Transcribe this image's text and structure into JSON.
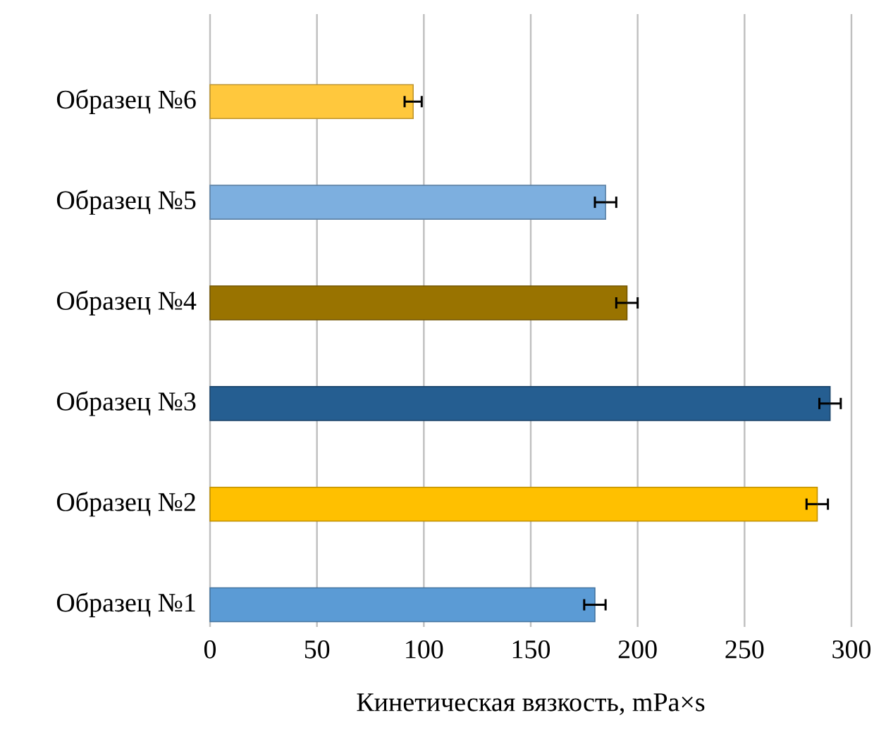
{
  "chart_data": {
    "type": "bar",
    "orientation": "horizontal",
    "xlabel": "Кинетическая вязкость, mPa×s",
    "categories": [
      "Образец №6",
      "Образец №5",
      "Образец №4",
      "Образец №3",
      "Образец №2",
      "Образец №1"
    ],
    "values": [
      95,
      185,
      195,
      290,
      284,
      180
    ],
    "errors": [
      4,
      5,
      5,
      5,
      5,
      5
    ],
    "colors": [
      "#ffc83d",
      "#7dafdf",
      "#997300",
      "#255e91",
      "#ffc000",
      "#5b9bd5"
    ],
    "xlim": [
      0,
      300
    ],
    "xticks": [
      0,
      50,
      100,
      150,
      200,
      250,
      300
    ],
    "grid": "x"
  }
}
